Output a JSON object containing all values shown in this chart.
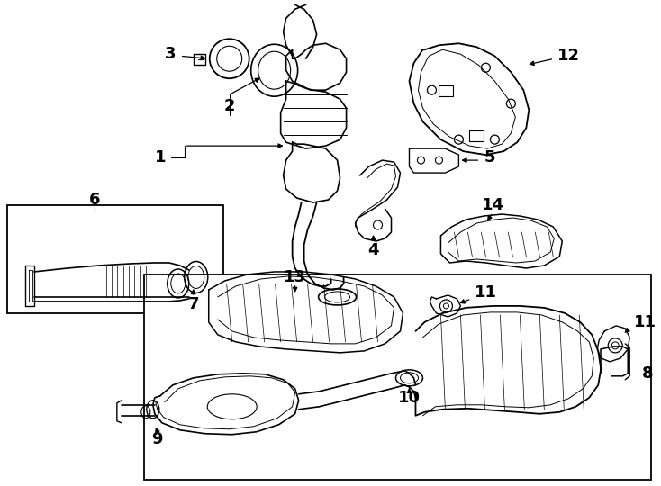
{
  "background": "#ffffff",
  "line_color": "#000000",
  "fig_width": 7.34,
  "fig_height": 5.4,
  "dpi": 100
}
